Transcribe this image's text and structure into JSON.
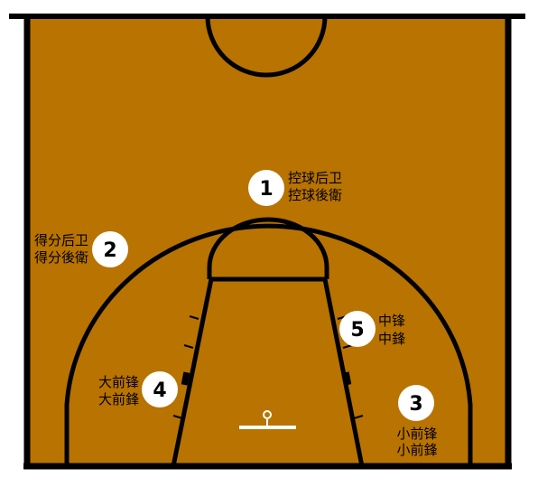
{
  "court": {
    "floor_color": "#B87300",
    "line_color": "#000000",
    "marker_circle_color": "#FFFFFF",
    "rim_color": "#FFFFFF"
  },
  "positions": [
    {
      "number": "1",
      "label_simplified": "控球后卫",
      "label_traditional": "控球後衛"
    },
    {
      "number": "2",
      "label_simplified": "得分后卫",
      "label_traditional": "得分後衛"
    },
    {
      "number": "3",
      "label_simplified": "小前锋",
      "label_traditional": "小前鋒"
    },
    {
      "number": "4",
      "label_simplified": "大前锋",
      "label_traditional": "大前鋒"
    },
    {
      "number": "5",
      "label_simplified": "中锋",
      "label_traditional": "中鋒"
    }
  ]
}
